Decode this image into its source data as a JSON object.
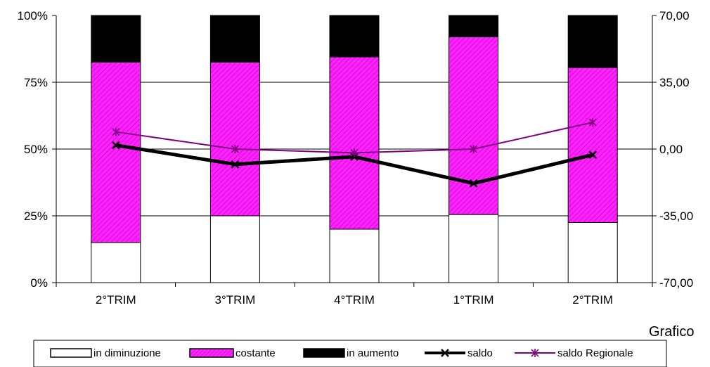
{
  "caption": "Grafico",
  "chart_data": {
    "type": "bar",
    "stacked": true,
    "categories": [
      "2°TRIM",
      "3°TRIM",
      "4°TRIM",
      "1°TRIM",
      "2°TRIM"
    ],
    "left_axis": {
      "ticks": [
        "0%",
        "25%",
        "50%",
        "75%",
        "100%"
      ],
      "ylim": [
        0,
        100
      ]
    },
    "right_axis": {
      "ticks": [
        "-70,00",
        "-35,00",
        "0,00",
        "35,00",
        "70,00"
      ],
      "ylim": [
        -70,
        70
      ]
    },
    "grid": true,
    "legend_position": "bottom",
    "series": [
      {
        "name": "in diminuzione",
        "kind": "bar",
        "axis": "left",
        "color": "#ffffff",
        "values": [
          15,
          25,
          20,
          25.5,
          22.5
        ]
      },
      {
        "name": "costante",
        "kind": "bar",
        "axis": "left",
        "color": "#ff00ff",
        "pattern": "hatched",
        "values": [
          67.5,
          57.5,
          64.5,
          66.5,
          58
        ]
      },
      {
        "name": "in aumento",
        "kind": "bar",
        "axis": "left",
        "color": "#000000",
        "values": [
          17.5,
          17.5,
          15.5,
          8,
          19.5
        ]
      },
      {
        "name": "saldo",
        "kind": "line",
        "axis": "right",
        "color": "#000000",
        "values": [
          2,
          -8,
          -4,
          -18,
          -3
        ]
      },
      {
        "name": "saldo Regionale",
        "kind": "line",
        "axis": "right",
        "color": "#800080",
        "values": [
          9,
          0,
          -2,
          0,
          14
        ]
      }
    ]
  }
}
